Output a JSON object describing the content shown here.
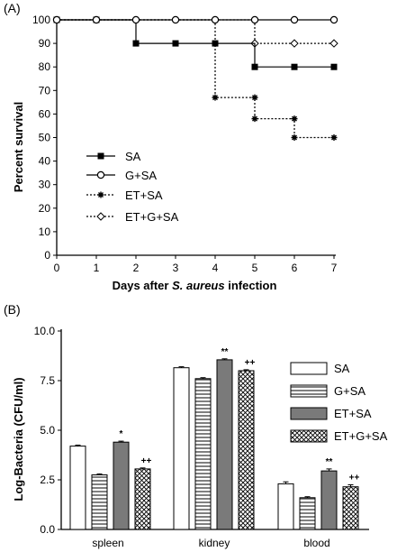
{
  "chart_data": [
    {
      "panel_label": "(A)",
      "type": "line",
      "step": true,
      "xlabel_parts": [
        "Days after ",
        "S. aureus",
        " infection"
      ],
      "ylabel": "Percent survival",
      "xlim": [
        0,
        7
      ],
      "ylim": [
        0,
        100
      ],
      "x_ticks": [
        0,
        1,
        2,
        3,
        4,
        5,
        6,
        7
      ],
      "y_ticks": [
        0,
        10,
        20,
        30,
        40,
        50,
        60,
        70,
        80,
        90,
        100
      ],
      "legend_position": "bottom-left",
      "series": [
        {
          "name": "SA",
          "line": "solid",
          "marker": "filled-square",
          "x": [
            0,
            1,
            2,
            3,
            4,
            5,
            6,
            7
          ],
          "y": [
            100,
            100,
            90,
            90,
            90,
            80,
            80,
            80
          ],
          "steps": [
            [
              0,
              100
            ],
            [
              2,
              100
            ],
            [
              2,
              90
            ],
            [
              5,
              90
            ],
            [
              5,
              80
            ],
            [
              7,
              80
            ]
          ]
        },
        {
          "name": "G+SA",
          "line": "solid",
          "marker": "open-circle",
          "x": [
            0,
            1,
            2,
            3,
            4,
            5,
            6,
            7
          ],
          "y": [
            100,
            100,
            100,
            100,
            100,
            100,
            100,
            100
          ],
          "steps": [
            [
              0,
              100
            ],
            [
              7,
              100
            ]
          ]
        },
        {
          "name": "ET+SA",
          "line": "dotted",
          "marker": "star",
          "x": [
            0,
            1,
            2,
            3,
            4,
            5,
            6,
            7
          ],
          "y": [
            100,
            100,
            100,
            100,
            67,
            58,
            50,
            50
          ],
          "marker_points": [
            [
              4,
              67
            ],
            [
              5,
              67
            ],
            [
              5,
              58
            ],
            [
              6,
              58
            ],
            [
              6,
              50
            ],
            [
              7,
              50
            ]
          ],
          "steps": [
            [
              0,
              100
            ],
            [
              4,
              100
            ],
            [
              4,
              67
            ],
            [
              5,
              67
            ],
            [
              5,
              58
            ],
            [
              6,
              58
            ],
            [
              6,
              50
            ],
            [
              7,
              50
            ]
          ]
        },
        {
          "name": "ET+G+SA",
          "line": "dotted",
          "marker": "open-diamond",
          "x": [
            0,
            1,
            2,
            3,
            4,
            5,
            6,
            7
          ],
          "y": [
            100,
            100,
            100,
            100,
            100,
            90,
            90,
            90
          ],
          "steps": [
            [
              0,
              100
            ],
            [
              5,
              100
            ],
            [
              5,
              90
            ],
            [
              7,
              90
            ]
          ]
        }
      ]
    },
    {
      "panel_label": "(B)",
      "type": "bar",
      "categories": [
        "spleen",
        "kidney",
        "blood"
      ],
      "ylabel": "Log-Bacteria (CFU/ml)",
      "ylim": [
        0,
        10
      ],
      "y_ticks": [
        "0.0",
        "2.5",
        "5.0",
        "7.5",
        "10.0"
      ],
      "legend_position": "top-right",
      "series": [
        {
          "name": "SA",
          "fill": "white",
          "values": [
            4.2,
            8.15,
            2.3
          ],
          "errors": [
            0.05,
            0.05,
            0.1
          ]
        },
        {
          "name": "G+SA",
          "fill": "horizontal-lines",
          "values": [
            2.75,
            7.6,
            1.6
          ],
          "errors": [
            0.05,
            0.05,
            0.05
          ]
        },
        {
          "name": "ET+SA",
          "fill": "gray",
          "values": [
            4.4,
            8.55,
            2.95
          ],
          "errors": [
            0.05,
            0.05,
            0.1
          ]
        },
        {
          "name": "ET+G+SA",
          "fill": "crosshatch",
          "values": [
            3.05,
            8.0,
            2.15
          ],
          "errors": [
            0.05,
            0.05,
            0.1
          ]
        }
      ],
      "annotations": [
        {
          "category": "spleen",
          "series": "ET+SA",
          "text": "*"
        },
        {
          "category": "spleen",
          "series": "ET+G+SA",
          "text": "++"
        },
        {
          "category": "kidney",
          "series": "ET+SA",
          "text": "**"
        },
        {
          "category": "kidney",
          "series": "ET+G+SA",
          "text": "++"
        },
        {
          "category": "blood",
          "series": "ET+SA",
          "text": "**"
        },
        {
          "category": "blood",
          "series": "ET+G+SA",
          "text": "++"
        }
      ]
    }
  ]
}
